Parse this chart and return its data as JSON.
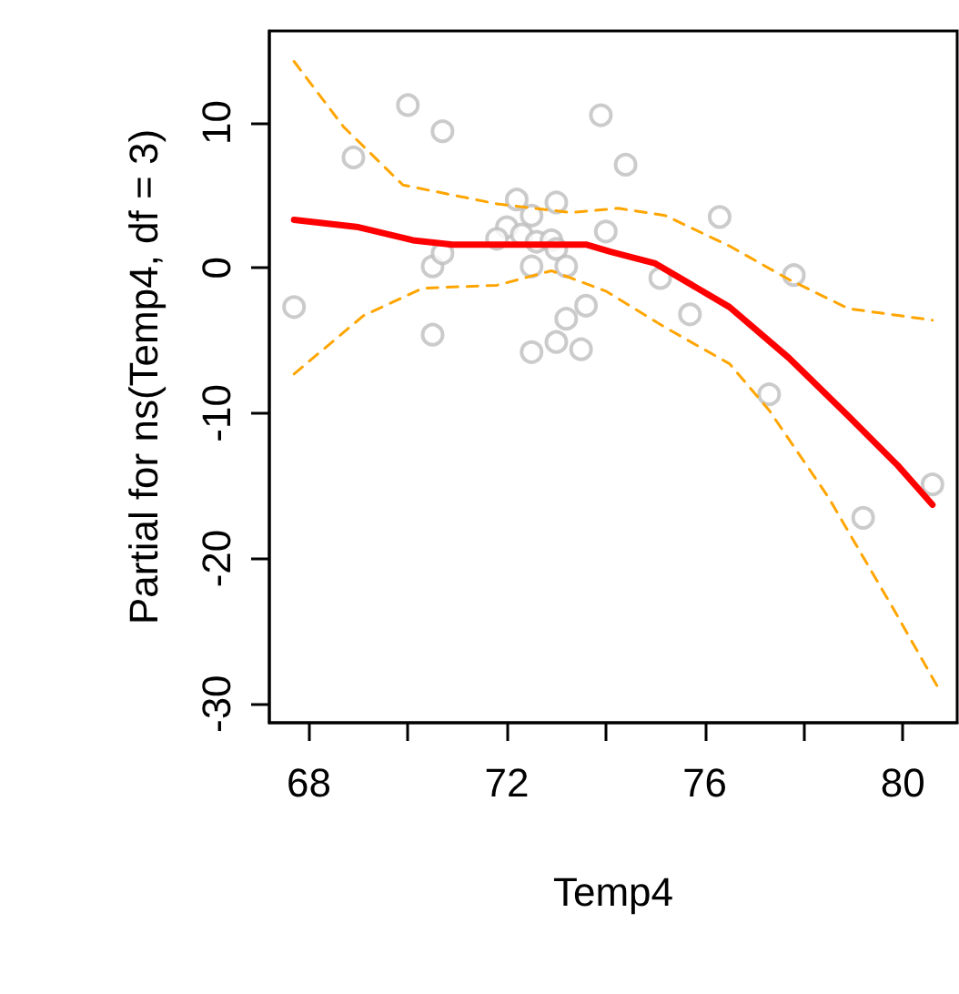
{
  "chart_data": {
    "type": "scatter",
    "xlabel": "Temp4",
    "ylabel": "Partial for ns(Temp4, df = 3)",
    "xlim": [
      67.2,
      81.1
    ],
    "ylim": [
      -31.3,
      16.3
    ],
    "xticks": [
      68,
      {
        "value": 70,
        "label": null
      },
      72,
      {
        "value": 74,
        "label": null
      },
      76,
      {
        "value": 78,
        "label": null
      },
      80
    ],
    "yticks": [
      -30,
      -20,
      -10,
      0,
      10
    ],
    "grid": false,
    "series": [
      {
        "marker": "circle",
        "color": "#bebebe",
        "x": [
          67.7,
          68.9,
          70.0,
          70.7,
          70.5,
          70.5,
          70.7,
          72.2,
          72.5,
          73.0,
          72.0,
          72.3,
          71.8,
          72.6,
          72.9,
          73.0,
          72.5,
          73.2,
          73.6,
          73.2,
          73.0,
          73.5,
          72.5,
          74.0,
          73.9,
          74.4,
          76.3,
          75.1,
          77.8,
          75.7,
          77.3,
          79.2,
          80.6
        ],
        "values": [
          -2.7,
          7.6,
          11.2,
          9.4,
          -4.6,
          0.1,
          1.0,
          4.7,
          3.6,
          4.5,
          2.8,
          2.3,
          2.0,
          1.8,
          1.9,
          1.3,
          0.1,
          0.1,
          -2.6,
          -3.5,
          -5.1,
          -5.6,
          -5.8,
          2.5,
          10.5,
          7.1,
          3.5,
          -0.7,
          -0.5,
          -3.2,
          -8.7,
          -17.2,
          -14.9
        ]
      },
      {
        "type": "line",
        "marker": "none",
        "line_style": "solid",
        "color": "#ff0000",
        "x": [
          67.7,
          69.0,
          70.1,
          70.9,
          73.6,
          74.1,
          75.0,
          76.5,
          77.7,
          78.9,
          79.9,
          80.6
        ],
        "values": [
          3.3,
          2.8,
          1.9,
          1.6,
          1.6,
          1.1,
          0.3,
          -2.7,
          -6.2,
          -10.2,
          -13.6,
          -16.3
        ]
      },
      {
        "type": "line",
        "marker": "none",
        "line_style": "dashed",
        "color": "#ffa500",
        "x": [
          67.7,
          68.7,
          69.9,
          71.8,
          73.3,
          74.25,
          75.2,
          76.5,
          77.7,
          78.9,
          80.6
        ],
        "values": [
          14.2,
          9.7,
          5.7,
          4.4,
          3.8,
          4.1,
          3.6,
          1.5,
          -0.8,
          -2.8,
          -3.6
        ]
      },
      {
        "type": "line",
        "marker": "none",
        "line_style": "dashed",
        "color": "#ffa500",
        "x": [
          67.7,
          69.1,
          70.3,
          71.8,
          72.9,
          74.0,
          75.2,
          76.5,
          77.3,
          78.5,
          79.8,
          80.7
        ],
        "values": [
          -7.3,
          -3.3,
          -1.4,
          -1.2,
          -0.2,
          -1.6,
          -4.1,
          -6.6,
          -9.8,
          -15.8,
          -23.4,
          -28.8
        ]
      }
    ]
  }
}
